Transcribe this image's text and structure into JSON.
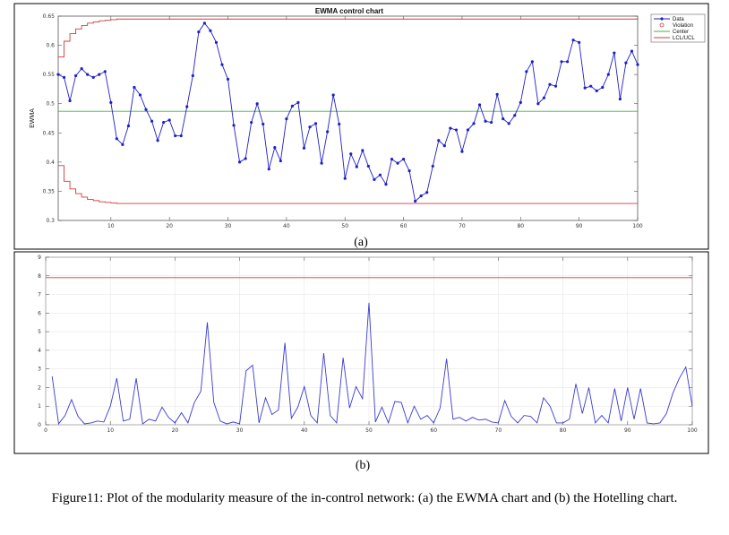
{
  "caption": "Figure11: Plot of the modularity measure of the in-control network: (a) the EWMA chart and (b) the Hotelling chart.",
  "chart_data": [
    {
      "type": "line",
      "panel_label": "(a)",
      "title": "EWMA control chart",
      "ylabel": "EWMA",
      "xlim": [
        1,
        100
      ],
      "ylim": [
        0.3,
        0.65
      ],
      "xticks": [
        10,
        20,
        30,
        40,
        50,
        60,
        70,
        80,
        90,
        100
      ],
      "yticks": [
        0.3,
        0.35,
        0.4,
        0.45,
        0.5,
        0.55,
        0.6,
        0.65
      ],
      "ytick_labels": [
        "0.3",
        "0.35",
        "0.4",
        "0.45",
        "0.5",
        "0.55",
        "0.6",
        "0.65"
      ],
      "legend": {
        "placement": "top-right",
        "entries": [
          "Data",
          "Violation",
          "Center",
          "LCL/UCL"
        ]
      },
      "colors": {
        "data": "#1f1fc8",
        "center": "#3cb43c",
        "limits": "#d23c3c",
        "violation": "#d23c3c"
      },
      "series": [
        {
          "name": "Data",
          "x": [
            1,
            2,
            3,
            4,
            5,
            6,
            7,
            8,
            9,
            10,
            11,
            12,
            13,
            14,
            15,
            16,
            17,
            18,
            19,
            20,
            21,
            22,
            23,
            24,
            25,
            26,
            27,
            28,
            29,
            30,
            31,
            32,
            33,
            34,
            35,
            36,
            37,
            38,
            39,
            40,
            41,
            42,
            43,
            44,
            45,
            46,
            47,
            48,
            49,
            50,
            51,
            52,
            53,
            54,
            55,
            56,
            57,
            58,
            59,
            60,
            61,
            62,
            63,
            64,
            65,
            66,
            67,
            68,
            69,
            70,
            71,
            72,
            73,
            74,
            75,
            76,
            77,
            78,
            79,
            80,
            81,
            82,
            83,
            84,
            85,
            86,
            87,
            88,
            89,
            90,
            91,
            92,
            93,
            94,
            95,
            96,
            97,
            98,
            99,
            100
          ],
          "values": [
            0.55,
            0.545,
            0.505,
            0.548,
            0.56,
            0.55,
            0.545,
            0.55,
            0.555,
            0.502,
            0.44,
            0.43,
            0.462,
            0.528,
            0.515,
            0.49,
            0.47,
            0.437,
            0.468,
            0.472,
            0.445,
            0.445,
            0.495,
            0.548,
            0.623,
            0.638,
            0.625,
            0.605,
            0.567,
            0.542,
            0.463,
            0.4,
            0.406,
            0.468,
            0.5,
            0.465,
            0.388,
            0.425,
            0.402,
            0.474,
            0.496,
            0.502,
            0.424,
            0.46,
            0.466,
            0.398,
            0.452,
            0.515,
            0.465,
            0.372,
            0.414,
            0.392,
            0.42,
            0.393,
            0.37,
            0.378,
            0.362,
            0.405,
            0.398,
            0.405,
            0.385,
            0.333,
            0.342,
            0.348,
            0.393,
            0.437,
            0.428,
            0.458,
            0.455,
            0.418,
            0.455,
            0.466,
            0.498,
            0.47,
            0.468,
            0.516,
            0.474,
            0.466,
            0.48,
            0.502,
            0.555,
            0.572,
            0.5,
            0.51,
            0.533,
            0.53,
            0.572,
            0.572,
            0.609,
            0.605,
            0.527,
            0.53,
            0.522,
            0.528,
            0.55,
            0.587,
            0.508,
            0.57,
            0.59,
            0.567
          ]
        },
        {
          "name": "Center",
          "value": 0.487
        },
        {
          "name": "LCL/UCL",
          "x": [
            1,
            2,
            3,
            4,
            5,
            6,
            7,
            8,
            9,
            10,
            11,
            12,
            13,
            14,
            15,
            16,
            17,
            18,
            19,
            20,
            21,
            22,
            23,
            24,
            25,
            26,
            27,
            28,
            29,
            30,
            31,
            32,
            33,
            34,
            35,
            36,
            37,
            38,
            39,
            40,
            41,
            42,
            43,
            44,
            45,
            46,
            47,
            48,
            49,
            50,
            51,
            52,
            53,
            54,
            55,
            56,
            57,
            58,
            59,
            60,
            61,
            62,
            63,
            64,
            65,
            66,
            67,
            68,
            69,
            70,
            71,
            72,
            73,
            74,
            75,
            76,
            77,
            78,
            79,
            80,
            81,
            82,
            83,
            84,
            85,
            86,
            87,
            88,
            89,
            90,
            91,
            92,
            93,
            94,
            95,
            96,
            97,
            98,
            99,
            100
          ],
          "ucl": [
            0.58,
            0.607,
            0.62,
            0.628,
            0.634,
            0.638,
            0.64,
            0.642,
            0.643,
            0.644,
            0.645,
            0.645,
            0.645,
            0.645,
            0.645,
            0.645,
            0.645,
            0.645,
            0.645,
            0.645,
            0.645,
            0.645,
            0.645,
            0.645,
            0.645,
            0.645,
            0.645,
            0.645,
            0.645,
            0.645,
            0.645,
            0.645,
            0.645,
            0.645,
            0.645,
            0.645,
            0.645,
            0.645,
            0.645,
            0.645,
            0.645,
            0.645,
            0.645,
            0.645,
            0.645,
            0.645,
            0.645,
            0.645,
            0.645,
            0.645,
            0.645,
            0.645,
            0.645,
            0.645,
            0.645,
            0.645,
            0.645,
            0.645,
            0.645,
            0.645,
            0.645,
            0.645,
            0.645,
            0.645,
            0.645,
            0.645,
            0.645,
            0.645,
            0.645,
            0.645,
            0.645,
            0.645,
            0.645,
            0.645,
            0.645,
            0.645,
            0.645,
            0.645,
            0.645,
            0.645,
            0.645,
            0.645,
            0.645,
            0.645,
            0.645,
            0.645,
            0.645,
            0.645,
            0.645,
            0.645,
            0.645,
            0.645,
            0.645,
            0.645,
            0.645,
            0.645,
            0.645,
            0.645,
            0.645,
            0.645
          ],
          "lcl": [
            0.394,
            0.367,
            0.354,
            0.346,
            0.34,
            0.336,
            0.334,
            0.332,
            0.331,
            0.33,
            0.329,
            0.329,
            0.329,
            0.329,
            0.329,
            0.329,
            0.329,
            0.329,
            0.329,
            0.329,
            0.329,
            0.329,
            0.329,
            0.329,
            0.329,
            0.329,
            0.329,
            0.329,
            0.329,
            0.329,
            0.329,
            0.329,
            0.329,
            0.329,
            0.329,
            0.329,
            0.329,
            0.329,
            0.329,
            0.329,
            0.329,
            0.329,
            0.329,
            0.329,
            0.329,
            0.329,
            0.329,
            0.329,
            0.329,
            0.329,
            0.329,
            0.329,
            0.329,
            0.329,
            0.329,
            0.329,
            0.329,
            0.329,
            0.329,
            0.329,
            0.329,
            0.329,
            0.329,
            0.329,
            0.329,
            0.329,
            0.329,
            0.329,
            0.329,
            0.329,
            0.329,
            0.329,
            0.329,
            0.329,
            0.329,
            0.329,
            0.329,
            0.329,
            0.329,
            0.329,
            0.329,
            0.329,
            0.329,
            0.329,
            0.329,
            0.329,
            0.329,
            0.329,
            0.329,
            0.329,
            0.329,
            0.329,
            0.329,
            0.329,
            0.329,
            0.329,
            0.329,
            0.329,
            0.329,
            0.329
          ]
        }
      ]
    },
    {
      "type": "line",
      "panel_label": "(b)",
      "xlim": [
        0,
        100
      ],
      "ylim": [
        0,
        9
      ],
      "xticks": [
        0,
        10,
        20,
        30,
        40,
        50,
        60,
        70,
        80,
        90,
        100
      ],
      "yticks": [
        0,
        1,
        2,
        3,
        4,
        5,
        6,
        7,
        8,
        9
      ],
      "colors": {
        "data": "#3a3ad2",
        "limit": "#d23c3c"
      },
      "series": [
        {
          "x": [
            1,
            2,
            3,
            4,
            5,
            6,
            7,
            8,
            9,
            10,
            11,
            12,
            13,
            14,
            15,
            16,
            17,
            18,
            19,
            20,
            21,
            22,
            23,
            24,
            25,
            26,
            27,
            28,
            29,
            30,
            31,
            32,
            33,
            34,
            35,
            36,
            37,
            38,
            39,
            40,
            41,
            42,
            43,
            44,
            45,
            46,
            47,
            48,
            49,
            50,
            51,
            52,
            53,
            54,
            55,
            56,
            57,
            58,
            59,
            60,
            61,
            62,
            63,
            64,
            65,
            66,
            67,
            68,
            69,
            70,
            71,
            72,
            73,
            74,
            75,
            76,
            77,
            78,
            79,
            80,
            81,
            82,
            83,
            84,
            85,
            86,
            87,
            88,
            89,
            90,
            91,
            92,
            93,
            94,
            95,
            96,
            97,
            98,
            99,
            100
          ],
          "values": [
            2.6,
            0.05,
            0.5,
            1.35,
            0.45,
            0.05,
            0.1,
            0.2,
            0.15,
            1.0,
            2.5,
            0.2,
            0.3,
            2.5,
            0.05,
            0.3,
            0.2,
            0.95,
            0.4,
            0.1,
            0.65,
            0.1,
            1.2,
            1.8,
            5.5,
            1.2,
            0.2,
            0.05,
            0.15,
            0.05,
            2.9,
            3.2,
            0.1,
            1.45,
            0.55,
            0.8,
            4.4,
            0.35,
            0.95,
            2.05,
            0.5,
            0.1,
            3.85,
            0.5,
            0.1,
            3.6,
            0.9,
            2.05,
            1.4,
            6.55,
            0.15,
            0.95,
            0.1,
            1.25,
            1.2,
            0.1,
            1.0,
            0.3,
            0.5,
            0.1,
            0.9,
            3.55,
            0.3,
            0.4,
            0.2,
            0.4,
            0.25,
            0.3,
            0.15,
            0.1,
            1.3,
            0.45,
            0.1,
            0.5,
            0.45,
            0.1,
            1.45,
            1.0,
            0.1,
            0.1,
            0.3,
            2.2,
            0.6,
            2.0,
            0.1,
            0.5,
            0.1,
            1.95,
            0.2,
            2.0,
            0.3,
            1.95,
            0.1,
            0.05,
            0.1,
            0.6,
            1.7,
            2.5,
            3.1,
            1.0
          ]
        },
        {
          "value": 7.9
        }
      ]
    }
  ]
}
